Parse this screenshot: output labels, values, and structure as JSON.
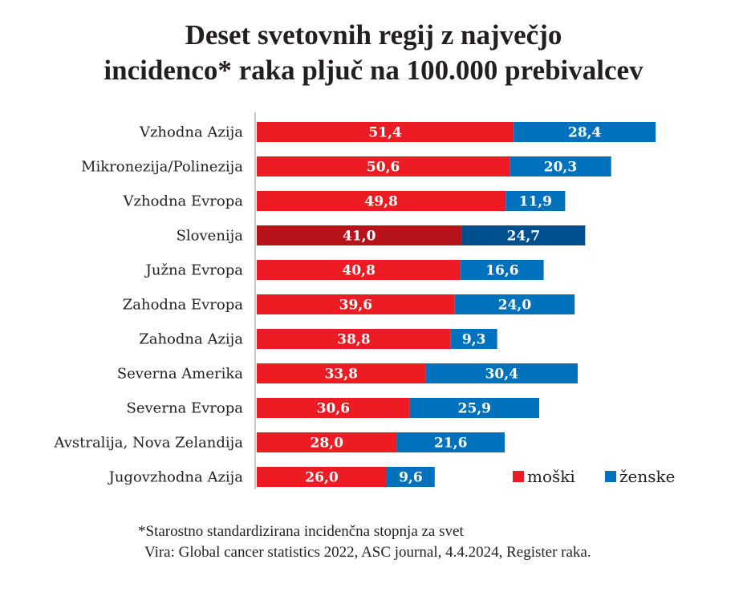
{
  "chart_data": {
    "type": "bar",
    "orientation": "horizontal",
    "stacked": true,
    "title_line1": "Deset svetovnih regij z največjo",
    "title_line2": "incidenco* raka pljuč na 100.000 prebivalcev",
    "categories": [
      "Vzhodna Azija",
      "Mikronezija/Polinezija",
      "Vzhodna Evropa",
      "Slovenija",
      "Južna Evropa",
      "Zahodna Evropa",
      "Zahodna Azija",
      "Severna Amerika",
      "Severna Evropa",
      "Avstralija, Nova Zelandija",
      "Jugovzhodna  Azija"
    ],
    "series": [
      {
        "name": "moški",
        "color": "#ed1c24",
        "highlight_color": "#b5121b",
        "values": [
          51.4,
          50.6,
          49.8,
          41.0,
          40.8,
          39.6,
          38.8,
          33.8,
          30.6,
          28.0,
          26.0
        ],
        "labels": [
          "51,4",
          "50,6",
          "49,8",
          "41,0",
          "40,8",
          "39,6",
          "38,8",
          "33,8",
          "30,6",
          "28,0",
          "26,0"
        ]
      },
      {
        "name": "ženske",
        "color": "#0071bc",
        "highlight_color": "#004f8f",
        "values": [
          28.4,
          20.3,
          11.9,
          24.7,
          16.6,
          24.0,
          9.3,
          30.4,
          25.9,
          21.6,
          9.6
        ],
        "labels": [
          "28,4",
          "20,3",
          "11,9",
          "24,7",
          "16,6",
          "24,0",
          "9,3",
          "30,4",
          "25,9",
          "21,6",
          "9,6"
        ]
      }
    ],
    "highlight_category": "Slovenija",
    "xlim": [
      0,
      85
    ],
    "grid": false,
    "legend_placement": "bottom-right",
    "xlabel": "",
    "ylabel": ""
  },
  "footnote": "*Starostno standardizirana incidenčna stopnja za svet",
  "source": "Vira: Global cancer statistics 2022, ASC journal, 4.4.2024, Register raka."
}
